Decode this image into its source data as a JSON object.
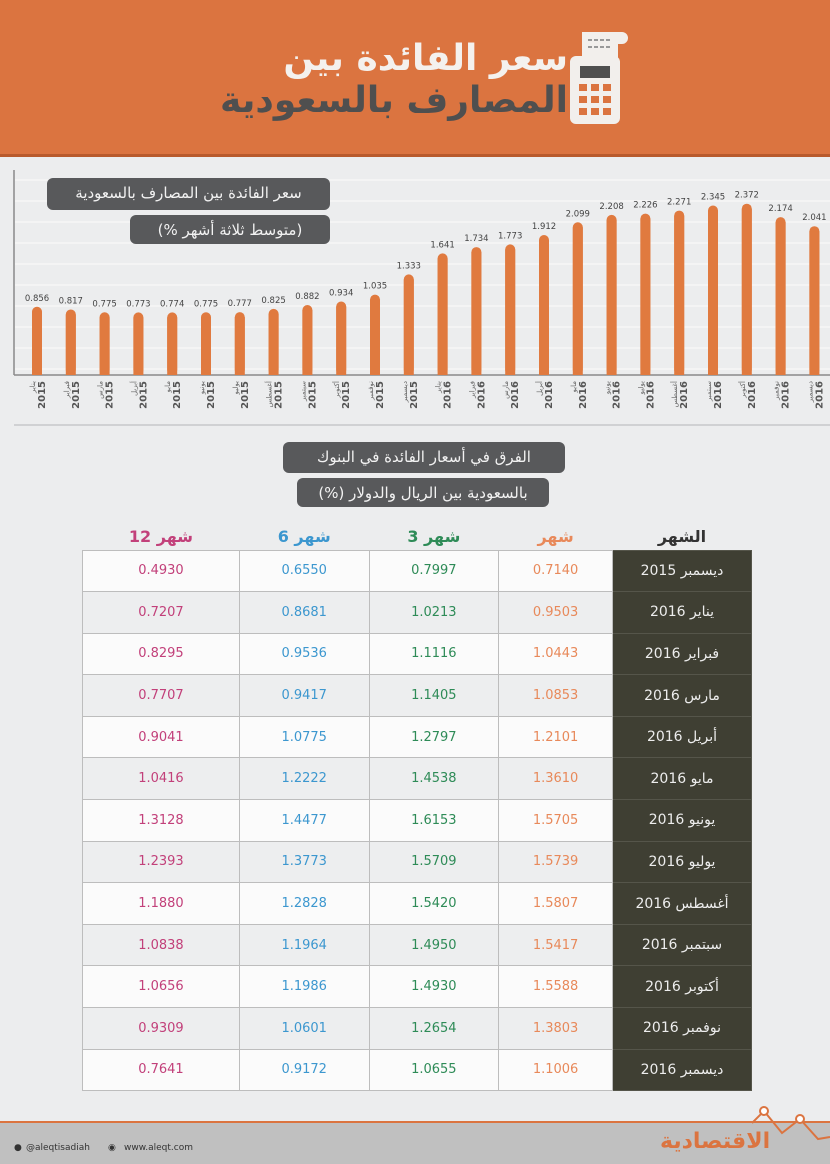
{
  "header": {
    "title_line1": "سعر الفائدة بين",
    "title_line2": "المصارف بالسعودية",
    "icon": "calculator-receipt-icon"
  },
  "colors": {
    "accent": "#DB7440",
    "bar": "#E07A3F",
    "month": "#E8895A",
    "m3": "#2E8B57",
    "m6": "#3C97CF",
    "m12": "#C2407A",
    "label_bg": "#3F3F33"
  },
  "chart_data": {
    "type": "bar",
    "title": "سعر الفائدة بين المصارف بالسعودية",
    "subtitle": "(متوسط ثلاثة أشهر %)",
    "categories": [
      {
        "month": "يناير",
        "year": "2015"
      },
      {
        "month": "فبراير",
        "year": "2015"
      },
      {
        "month": "مارس",
        "year": "2015"
      },
      {
        "month": "أبريل",
        "year": "2015"
      },
      {
        "month": "مايو",
        "year": "2015"
      },
      {
        "month": "يونيو",
        "year": "2015"
      },
      {
        "month": "يوليو",
        "year": "2015"
      },
      {
        "month": "أغسطس",
        "year": "2015"
      },
      {
        "month": "سبتمبر",
        "year": "2015"
      },
      {
        "month": "أكتوبر",
        "year": "2015"
      },
      {
        "month": "نوفمبر",
        "year": "2015"
      },
      {
        "month": "ديسمبر",
        "year": "2015"
      },
      {
        "month": "يناير",
        "year": "2016"
      },
      {
        "month": "فبراير",
        "year": "2016"
      },
      {
        "month": "مارس",
        "year": "2016"
      },
      {
        "month": "أبريل",
        "year": "2016"
      },
      {
        "month": "مايو",
        "year": "2016"
      },
      {
        "month": "يونيو",
        "year": "2016"
      },
      {
        "month": "يوليو",
        "year": "2016"
      },
      {
        "month": "أغسطس",
        "year": "2016"
      },
      {
        "month": "سبتمبر",
        "year": "2016"
      },
      {
        "month": "أكتوبر",
        "year": "2016"
      },
      {
        "month": "نوفمبر",
        "year": "2016"
      },
      {
        "month": "ديسمبر",
        "year": "2016"
      }
    ],
    "values": [
      0.856,
      0.817,
      0.775,
      0.773,
      0.774,
      0.775,
      0.777,
      0.825,
      0.882,
      0.934,
      1.035,
      1.333,
      1.641,
      1.734,
      1.773,
      1.912,
      2.099,
      2.208,
      2.226,
      2.271,
      2.345,
      2.372,
      2.174,
      2.041
    ],
    "grid": true
  },
  "table": {
    "title_line1": "الفرق في أسعار الفائدة في البنوك",
    "title_line2": "بالسعودية بين الريال والدولار (%)",
    "headers": {
      "label": "الشهر",
      "m1": "شهر",
      "m3": "3 شهر",
      "m6": "6 شهر",
      "m12": "12 شهر"
    },
    "rows": [
      {
        "label": "ديسمبر 2015",
        "m1": "0.7140",
        "m3": "0.7997",
        "m6": "0.6550",
        "m12": "0.4930"
      },
      {
        "label": "يناير 2016",
        "m1": "0.9503",
        "m3": "1.0213",
        "m6": "0.8681",
        "m12": "0.7207"
      },
      {
        "label": "فبراير 2016",
        "m1": "1.0443",
        "m3": "1.1116",
        "m6": "0.9536",
        "m12": "0.8295"
      },
      {
        "label": "مارس 2016",
        "m1": "1.0853",
        "m3": "1.1405",
        "m6": "0.9417",
        "m12": "0.7707"
      },
      {
        "label": "أبريل 2016",
        "m1": "1.2101",
        "m3": "1.2797",
        "m6": "1.0775",
        "m12": "0.9041"
      },
      {
        "label": "مايو 2016",
        "m1": "1.3610",
        "m3": "1.4538",
        "m6": "1.2222",
        "m12": "1.0416"
      },
      {
        "label": "يونيو 2016",
        "m1": "1.5705",
        "m3": "1.6153",
        "m6": "1.4477",
        "m12": "1.3128"
      },
      {
        "label": "يوليو 2016",
        "m1": "1.5739",
        "m3": "1.5709",
        "m6": "1.3773",
        "m12": "1.2393"
      },
      {
        "label": "أغسطس 2016",
        "m1": "1.5807",
        "m3": "1.5420",
        "m6": "1.2828",
        "m12": "1.1880"
      },
      {
        "label": "سبتمبر 2016",
        "m1": "1.5417",
        "m3": "1.4950",
        "m6": "1.1964",
        "m12": "1.0838"
      },
      {
        "label": "أكتوبر 2016",
        "m1": "1.5588",
        "m3": "1.4930",
        "m6": "1.1986",
        "m12": "1.0656"
      },
      {
        "label": "نوفمبر 2016",
        "m1": "1.3803",
        "m3": "1.2654",
        "m6": "1.0601",
        "m12": "0.9309"
      },
      {
        "label": "ديسمبر 2016",
        "m1": "1.1006",
        "m3": "1.0655",
        "m6": "0.9172",
        "m12": "0.7641"
      }
    ]
  },
  "footer": {
    "twitter": "@aleqtisadiah",
    "website": "www.aleqt.com",
    "logo": "الاقتصادية"
  }
}
